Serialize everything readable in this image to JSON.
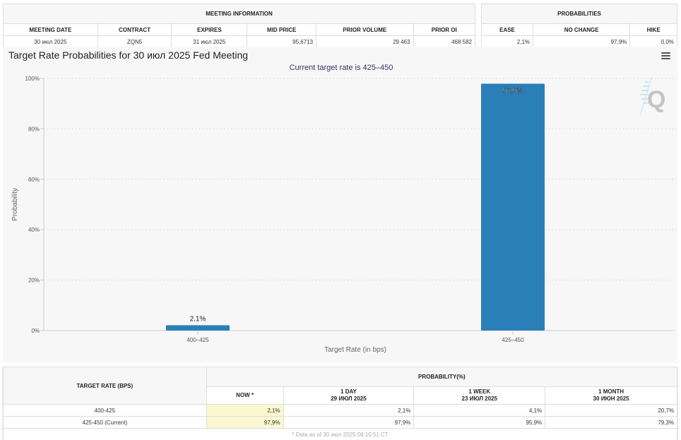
{
  "meeting_info": {
    "group_header": "MEETING INFORMATION",
    "columns": [
      "MEETING DATE",
      "CONTRACT",
      "EXPIRES",
      "MID PRICE",
      "PRIOR VOLUME",
      "PRIOR OI"
    ],
    "row": [
      "30 июл 2025",
      "ZQN5",
      "31 июл 2025",
      "95,6713",
      "29 463",
      "468 582"
    ]
  },
  "probabilities": {
    "group_header": "PROBABILITIES",
    "columns": [
      "EASE",
      "NO CHANGE",
      "HIKE"
    ],
    "row": [
      "2,1%",
      "97,9%",
      "0,0%"
    ]
  },
  "chart_panel": {
    "title": "Target Rate Probabilities for 30 июл 2025 Fed Meeting",
    "menu_icon": "hamburger-menu-icon",
    "watermark_icon": "q-logo-icon"
  },
  "chart_data": {
    "type": "bar",
    "title": "Target Rate Probabilities for 30 июл 2025 Fed Meeting",
    "subtitle": "Current target rate is 425–450",
    "categories": [
      "400–425",
      "425–450"
    ],
    "values": [
      2.1,
      97.9
    ],
    "data_labels": [
      "2.1%",
      "97.9%"
    ],
    "xlabel": "Target Rate (in bps)",
    "ylabel": "Probability",
    "ylim": [
      0,
      100
    ],
    "yticks": [
      0,
      20,
      40,
      60,
      80,
      100
    ],
    "ytick_labels": [
      "0%",
      "20%",
      "40%",
      "60%",
      "80%",
      "100%"
    ],
    "grid": true,
    "legend": "none",
    "bar_color": "#2a7fb8"
  },
  "bottom_table": {
    "target_rate_header": "TARGET RATE (BPS)",
    "group_header": "PROBABILITY(%)",
    "columns": [
      {
        "line1": "NOW *",
        "line2": ""
      },
      {
        "line1": "1 DAY",
        "line2": "29 ИЮЛ 2025"
      },
      {
        "line1": "1 WEEK",
        "line2": "23 ИЮЛ 2025"
      },
      {
        "line1": "1 MONTH",
        "line2": "30 ИЮН 2025"
      }
    ],
    "rows": [
      {
        "rate": "400-425",
        "values": [
          "2,1%",
          "2,1%",
          "4,1%",
          "20,7%"
        ]
      },
      {
        "rate": "425-450 (Current)",
        "values": [
          "97,9%",
          "97,9%",
          "95,9%",
          "79,3%"
        ]
      }
    ],
    "footnote": "* Data as of 30 июл 2025 06:10:51 CT"
  }
}
